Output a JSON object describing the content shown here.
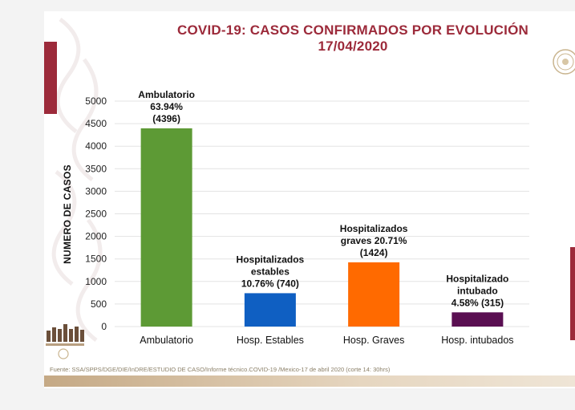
{
  "title_line1": "COVID-19: CASOS CONFIRMADOS POR EVOLUCIÓN",
  "title_line2": "17/04/2020",
  "source": "Fuente: SSA/SPPS/DGE/DIE/InDRE/ESTUDIO DE CASO/Informe técnico.COVID-19 /Mexico-17 de abril 2020 (corte 14: 30hrs)",
  "colors": {
    "title": "#9c2a3a",
    "accent": "#9c2a3a",
    "grid": "#e3e3e3"
  },
  "chart_data": {
    "type": "bar",
    "ylabel": "NUMERO DE CASOS",
    "xlabel": "",
    "ylim": [
      0,
      5000
    ],
    "yticks": [
      0,
      500,
      1000,
      1500,
      2000,
      2500,
      3000,
      3500,
      4000,
      4500,
      5000
    ],
    "grid": true,
    "categories": [
      "Ambulatorio",
      "Hosp. Estables",
      "Hosp. Graves",
      "Hosp. intubados"
    ],
    "values": [
      4396,
      740,
      1424,
      315
    ],
    "colors": [
      "#5d9a35",
      "#0f5fc2",
      "#ff6a00",
      "#5a0f52"
    ],
    "data_labels": [
      [
        "Ambulatorio",
        "63.94%",
        "(4396)"
      ],
      [
        "Hospitalizados",
        "estables",
        "10.76% (740)"
      ],
      [
        "Hospitalizados",
        "graves 20.71%",
        "(1424)"
      ],
      [
        "Hospitalizado",
        "intubado",
        "4.58% (315)"
      ]
    ]
  }
}
